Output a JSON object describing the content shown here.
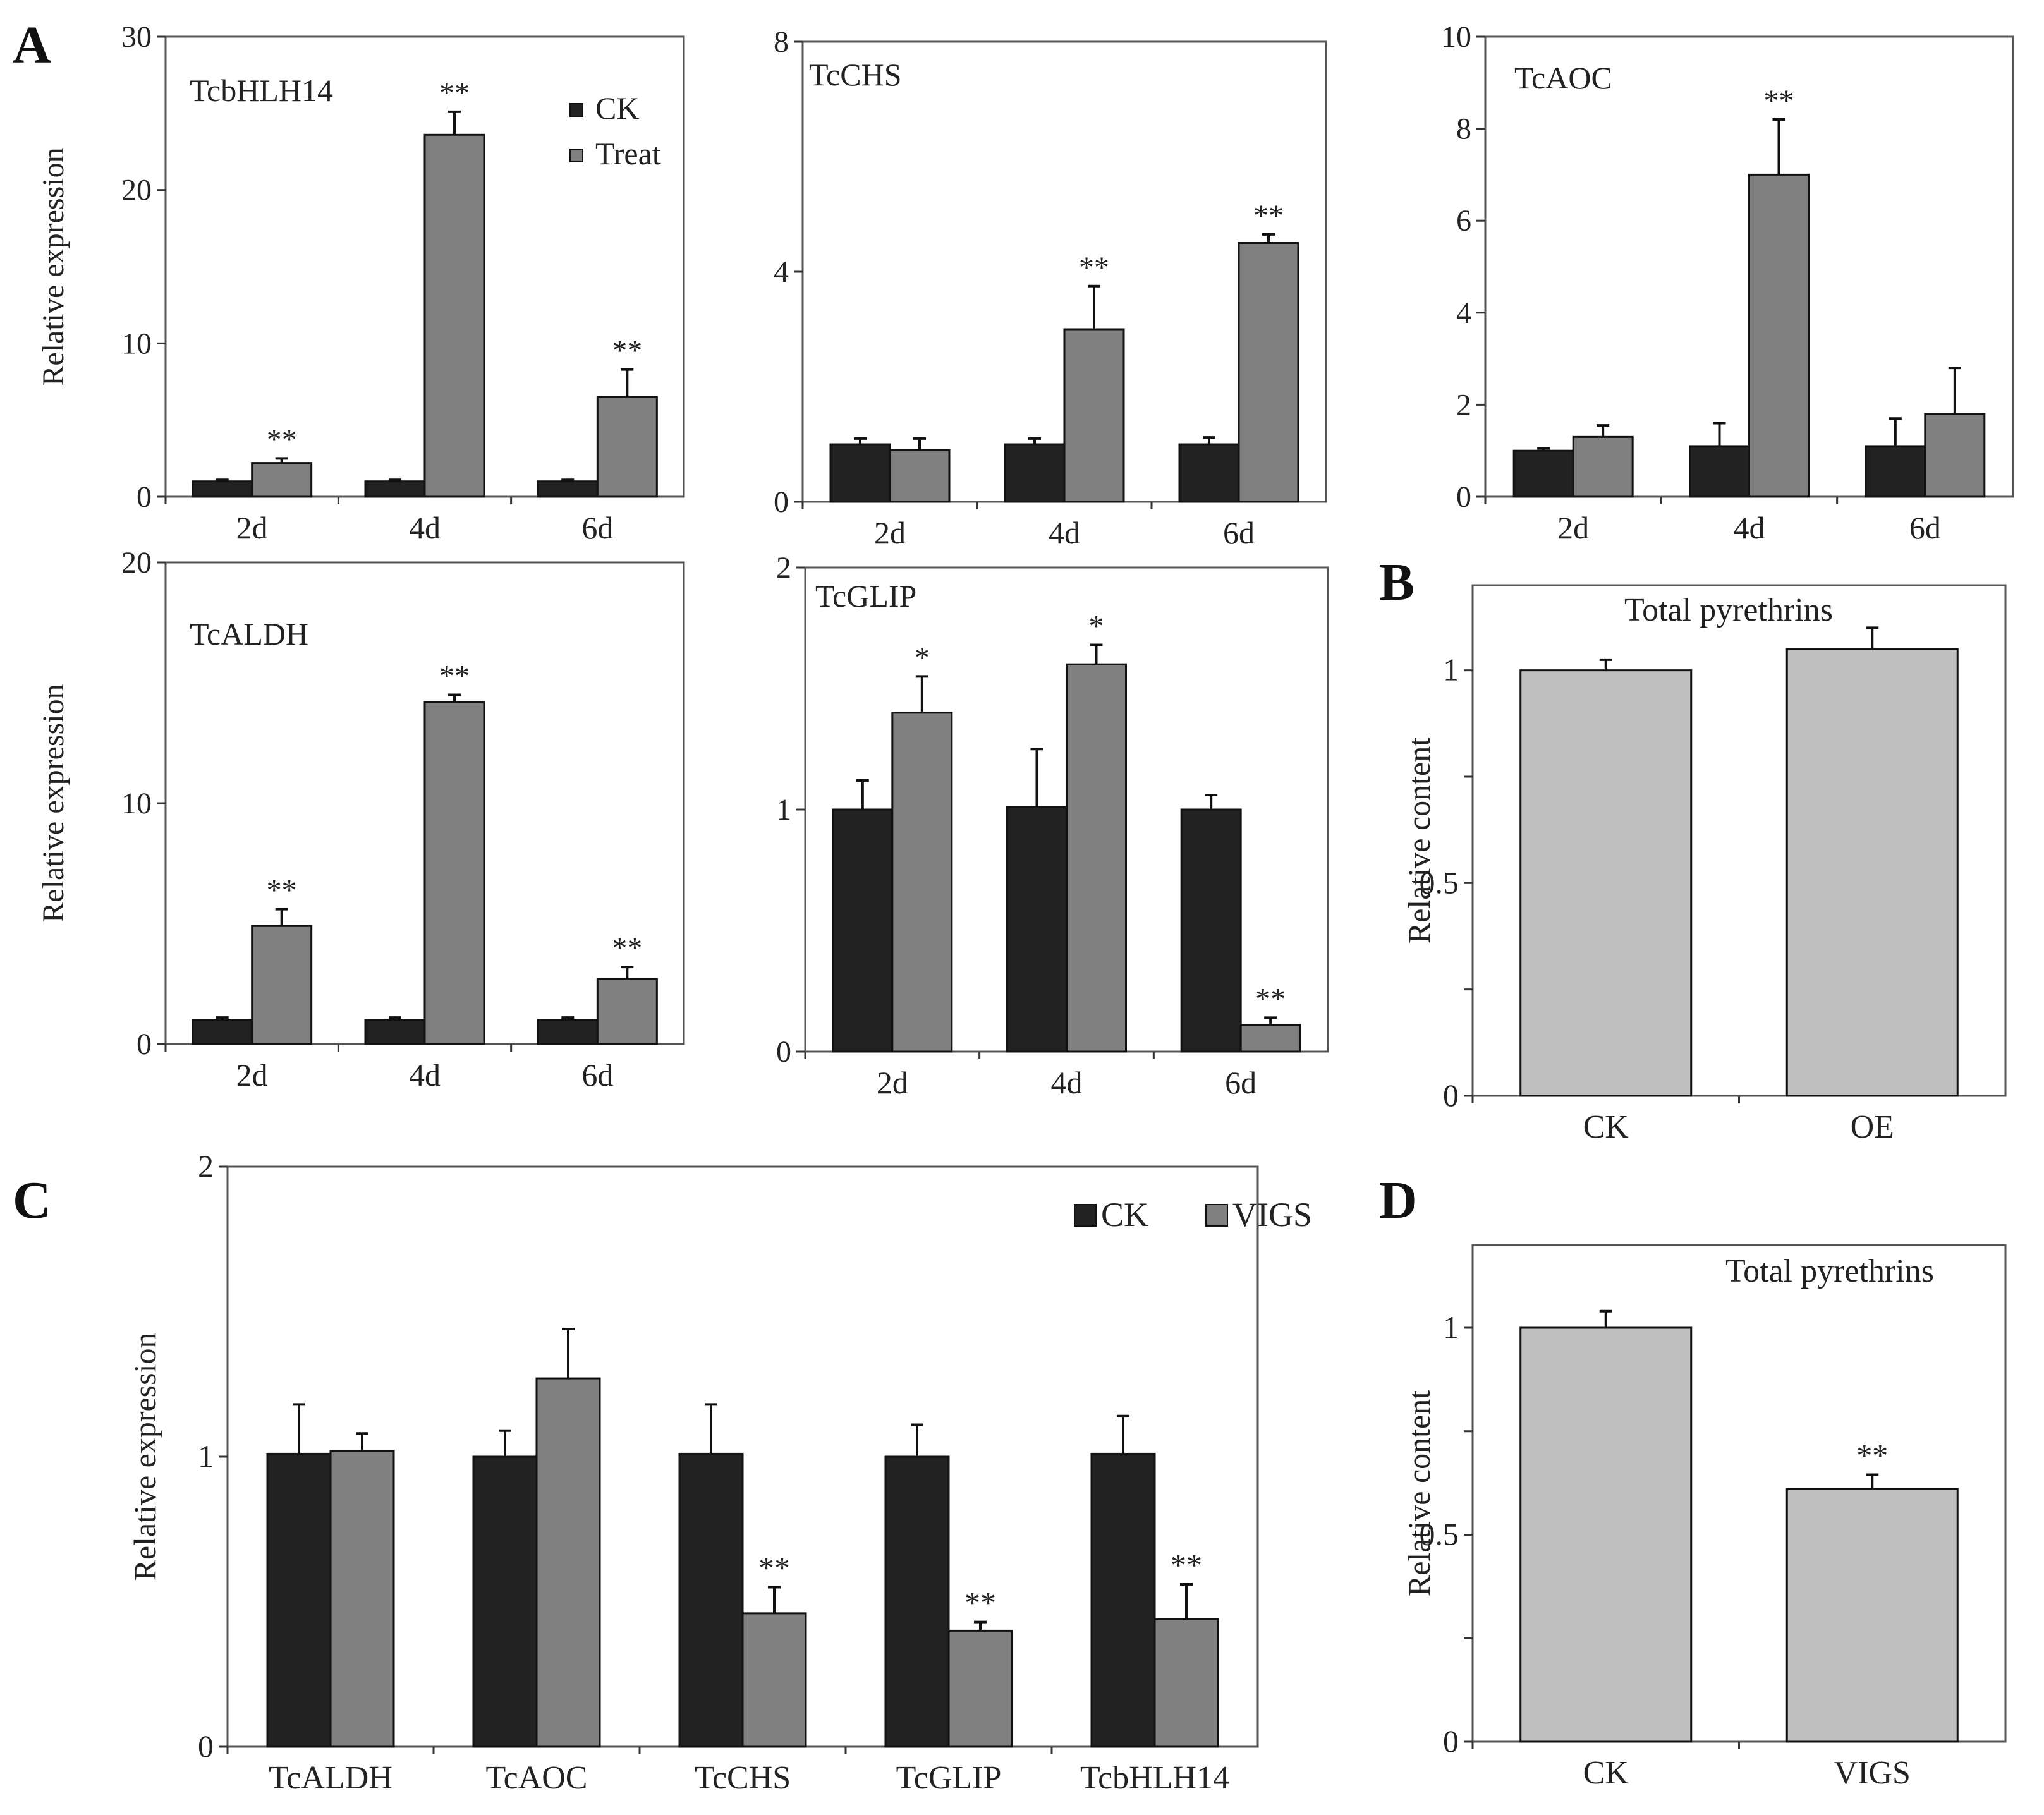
{
  "panel_letters": {
    "A": "A",
    "B": "B",
    "C": "C",
    "D": "D"
  },
  "colors": {
    "ck": "#222222",
    "treat": "#808080",
    "content": "#c0c0c0",
    "frame": "#555555"
  },
  "chart_data": [
    {
      "id": "a1",
      "type": "bar",
      "title": "TcbHLH14",
      "ylabel": "Relative expression",
      "ylim": [
        0,
        30
      ],
      "yticks": [
        0,
        10,
        20,
        30
      ],
      "categories": [
        "2d",
        "4d",
        "6d"
      ],
      "legend": {
        "entries": [
          "CK",
          "Treat"
        ],
        "position": "top-right"
      },
      "series": [
        {
          "name": "CK",
          "values": [
            1.0,
            1.0,
            1.0
          ],
          "errors": [
            0.1,
            0.1,
            0.1
          ]
        },
        {
          "name": "Treat",
          "values": [
            2.2,
            23.6,
            6.5
          ],
          "errors": [
            0.3,
            1.5,
            1.8
          ]
        }
      ],
      "annotations": [
        "**",
        "**",
        "**"
      ]
    },
    {
      "id": "a2",
      "type": "bar",
      "title": "TcCHS",
      "ylim": [
        0,
        8
      ],
      "yticks": [
        0,
        4,
        8
      ],
      "categories": [
        "2d",
        "4d",
        "6d"
      ],
      "series": [
        {
          "name": "CK",
          "values": [
            1.0,
            1.0,
            1.0
          ],
          "errors": [
            0.1,
            0.1,
            0.12
          ]
        },
        {
          "name": "Treat",
          "values": [
            0.9,
            3.0,
            4.5
          ],
          "errors": [
            0.2,
            0.75,
            0.15
          ]
        }
      ],
      "annotations": [
        "",
        "**",
        "**"
      ]
    },
    {
      "id": "a3",
      "type": "bar",
      "title": "TcAOC",
      "ylim": [
        0,
        10
      ],
      "yticks": [
        0,
        2,
        4,
        6,
        8,
        10
      ],
      "categories": [
        "2d",
        "4d",
        "6d"
      ],
      "series": [
        {
          "name": "CK",
          "values": [
            1.0,
            1.1,
            1.1
          ],
          "errors": [
            0.05,
            0.5,
            0.6
          ]
        },
        {
          "name": "Treat",
          "values": [
            1.3,
            7.0,
            1.8
          ],
          "errors": [
            0.25,
            1.2,
            1.0
          ]
        }
      ],
      "annotations": [
        "",
        "**",
        ""
      ]
    },
    {
      "id": "a4",
      "type": "bar",
      "title": "TcALDH",
      "ylabel": "Relative expression",
      "ylim": [
        0,
        20
      ],
      "yticks": [
        0,
        10,
        20
      ],
      "categories": [
        "2d",
        "4d",
        "6d"
      ],
      "series": [
        {
          "name": "CK",
          "values": [
            1.0,
            1.0,
            1.0
          ],
          "errors": [
            0.1,
            0.1,
            0.1
          ]
        },
        {
          "name": "Treat",
          "values": [
            4.9,
            14.2,
            2.7
          ],
          "errors": [
            0.7,
            0.3,
            0.5
          ]
        }
      ],
      "annotations": [
        "**",
        "**",
        "**"
      ]
    },
    {
      "id": "a5",
      "type": "bar",
      "title": "TcGLIP",
      "ylim": [
        0,
        2
      ],
      "yticks": [
        0,
        1,
        2
      ],
      "categories": [
        "2d",
        "4d",
        "6d"
      ],
      "series": [
        {
          "name": "CK",
          "values": [
            1.0,
            1.01,
            1.0
          ],
          "errors": [
            0.12,
            0.24,
            0.06
          ]
        },
        {
          "name": "Treat",
          "values": [
            1.4,
            1.6,
            0.11
          ],
          "errors": [
            0.15,
            0.08,
            0.03
          ]
        }
      ],
      "annotations": [
        "*",
        "*",
        "**"
      ]
    },
    {
      "id": "b",
      "type": "bar",
      "title": "Total pyrethrins",
      "ylabel": "Relative content",
      "ylim": [
        0,
        1.2
      ],
      "yticks": [
        0,
        0.25,
        0.5,
        0.75,
        1
      ],
      "ytick_labels": [
        "0",
        "",
        "0.5",
        "",
        "1"
      ],
      "categories": [
        "CK",
        "OE"
      ],
      "series": [
        {
          "name": "content",
          "values": [
            1.0,
            1.05
          ],
          "errors": [
            0.025,
            0.05
          ]
        }
      ],
      "annotations": [
        "",
        ""
      ]
    },
    {
      "id": "c",
      "type": "bar",
      "ylabel": "Relative expression",
      "ylim": [
        0,
        2
      ],
      "yticks": [
        0,
        1,
        2
      ],
      "categories": [
        "TcALDH",
        "TcAOC",
        "TcCHS",
        "TcGLIP",
        "TcbHLH14"
      ],
      "legend": {
        "entries": [
          "CK",
          "VIGS"
        ],
        "position": "top-right"
      },
      "series": [
        {
          "name": "CK",
          "values": [
            1.01,
            1.0,
            1.01,
            1.0,
            1.01
          ],
          "errors": [
            0.17,
            0.09,
            0.17,
            0.11,
            0.13
          ]
        },
        {
          "name": "VIGS",
          "values": [
            1.02,
            1.27,
            0.46,
            0.4,
            0.44
          ],
          "errors": [
            0.06,
            0.17,
            0.09,
            0.03,
            0.12
          ]
        }
      ],
      "annotations": [
        "",
        "",
        "**",
        "**",
        "**"
      ]
    },
    {
      "id": "d",
      "type": "bar",
      "title": "Total pyrethrins",
      "ylabel": "Relative content",
      "ylim": [
        0,
        1.2
      ],
      "yticks": [
        0,
        0.25,
        0.5,
        0.75,
        1
      ],
      "ytick_labels": [
        "0",
        "",
        "0.5",
        "",
        "1"
      ],
      "categories": [
        "CK",
        "VIGS"
      ],
      "series": [
        {
          "name": "content",
          "values": [
            1.0,
            0.61
          ],
          "errors": [
            0.04,
            0.035
          ]
        }
      ],
      "annotations": [
        "",
        "**"
      ]
    }
  ]
}
